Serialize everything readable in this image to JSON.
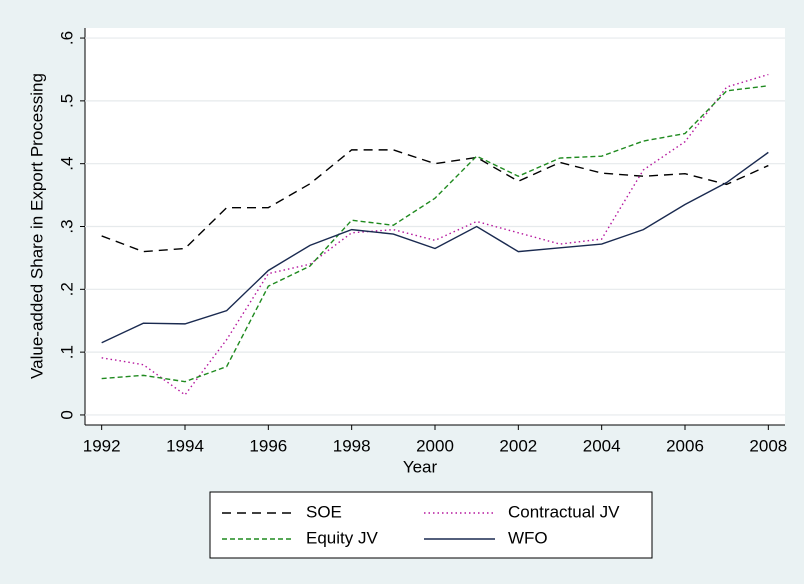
{
  "chart_data": {
    "type": "line",
    "x_label": "Year",
    "y_label": "Value-added Share in Export Processing",
    "x": [
      1992,
      1993,
      1994,
      1995,
      1996,
      1997,
      1998,
      1999,
      2000,
      2001,
      2002,
      2003,
      2004,
      2005,
      2006,
      2007,
      2008
    ],
    "series": [
      {
        "name": "SOE",
        "color": "#000000",
        "linestyle": "dash",
        "values": [
          0.285,
          0.26,
          0.265,
          0.33,
          0.33,
          0.368,
          0.422,
          0.422,
          0.4,
          0.41,
          0.372,
          0.402,
          0.385,
          0.38,
          0.384,
          0.367,
          0.397
        ]
      },
      {
        "name": "Contractual JV",
        "color": "#b5179e",
        "linestyle": "dot",
        "values": [
          0.091,
          0.08,
          0.032,
          0.12,
          0.225,
          0.24,
          0.29,
          0.295,
          0.278,
          0.308,
          0.29,
          0.272,
          0.28,
          0.39,
          0.435,
          0.522,
          0.542
        ]
      },
      {
        "name": "Equity JV",
        "color": "#1f8a1f",
        "linestyle": "shortdash",
        "values": [
          0.058,
          0.063,
          0.053,
          0.077,
          0.205,
          0.237,
          0.31,
          0.302,
          0.345,
          0.412,
          0.38,
          0.409,
          0.412,
          0.436,
          0.448,
          0.516,
          0.524
        ]
      },
      {
        "name": "WFO",
        "color": "#1a2a50",
        "linestyle": "solid",
        "values": [
          0.115,
          0.146,
          0.145,
          0.166,
          0.23,
          0.27,
          0.295,
          0.288,
          0.265,
          0.3,
          0.26,
          0.266,
          0.272,
          0.295,
          0.335,
          0.37,
          0.418
        ]
      }
    ],
    "xlim": [
      1991.6,
      2008.4
    ],
    "xticks": [
      1992,
      1994,
      1996,
      1998,
      2000,
      2002,
      2004,
      2006,
      2008
    ],
    "ylim": [
      -0.016,
      0.616
    ],
    "yticks": [
      0,
      {
        "value": 0.1,
        "label": ".1"
      },
      {
        "value": 0.2,
        "label": ".2"
      },
      {
        "value": 0.3,
        "label": ".3"
      },
      {
        "value": 0.4,
        "label": ".4"
      },
      {
        "value": 0.5,
        "label": ".5"
      },
      {
        "value": 0.6,
        "label": ".6"
      }
    ],
    "grid": true,
    "legend": "bottom"
  }
}
